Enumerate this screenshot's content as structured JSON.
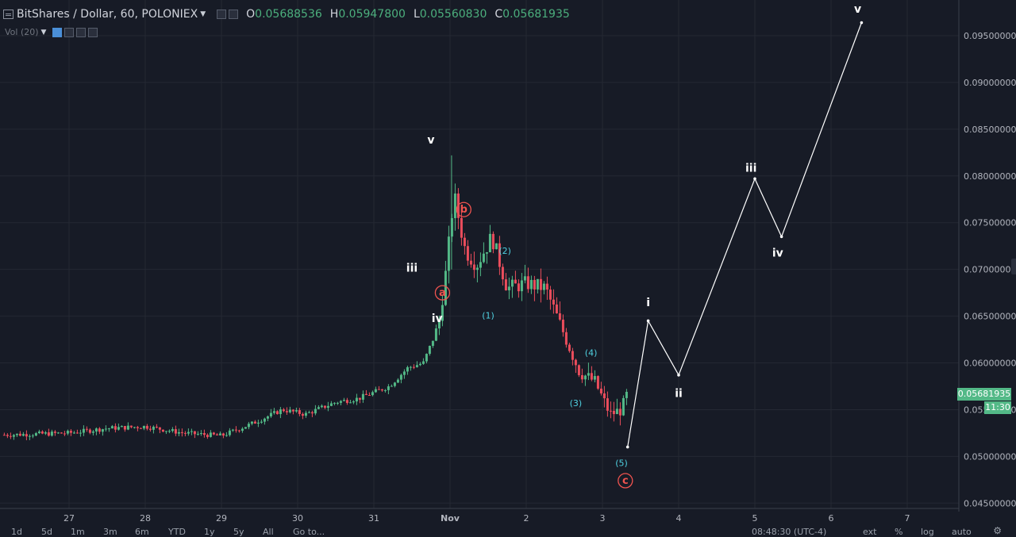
{
  "header": {
    "symbol": "BitShares / Dollar, 60, POLONIEX",
    "open_label": "O",
    "open": "0.05688536",
    "high_label": "H",
    "high": "0.05947800",
    "low_label": "L",
    "low": "0.05560830",
    "close_label": "C",
    "close": "0.05681935"
  },
  "indicator": {
    "label": "Vol (20)"
  },
  "price_axis": {
    "ticks": [
      "0.09500000",
      "0.09000000",
      "0.08500000",
      "0.08000000",
      "0.07500000",
      "0.07000000",
      "0.06500000",
      "0.06000000",
      "0.05500000",
      "0.05000000",
      "0.04500000"
    ],
    "tick_values": [
      0.095,
      0.09,
      0.085,
      0.08,
      0.075,
      0.07,
      0.065,
      0.06,
      0.055,
      0.05,
      0.045
    ],
    "last_price": "0.05681935",
    "countdown": "11:30"
  },
  "time_axis": {
    "labels": [
      "27",
      "28",
      "29",
      "30",
      "31",
      "Nov",
      "2",
      "3",
      "4",
      "5",
      "6",
      "7"
    ],
    "day_positions": [
      0,
      1,
      2,
      3,
      4,
      5,
      6,
      7,
      8,
      9,
      10,
      11
    ]
  },
  "bottom_bar": {
    "ranges": [
      "1d",
      "5d",
      "1m",
      "3m",
      "6m",
      "YTD",
      "1y",
      "5y",
      "All"
    ],
    "goto": "Go to...",
    "clock": "08:48:30 (UTC-4)",
    "ext": "ext",
    "percent": "%",
    "log": "log",
    "auto": "auto"
  },
  "colors": {
    "up": "#53b987",
    "down": "#eb4d5c",
    "wave_white": "#ffffff",
    "wave_cyan": "#4fd0e0",
    "wave_red": "#f0534f",
    "grid": "#242833",
    "background": "#171b26"
  },
  "chart_data": {
    "type": "candlestick",
    "candles_day_range": [
      -0.85,
      6.35
    ],
    "candle_anchors": [
      {
        "day": -0.85,
        "price": 0.0523
      },
      {
        "day": 0.0,
        "price": 0.0525
      },
      {
        "day": 0.5,
        "price": 0.053
      },
      {
        "day": 1.0,
        "price": 0.0532
      },
      {
        "day": 1.5,
        "price": 0.0525
      },
      {
        "day": 2.0,
        "price": 0.0522
      },
      {
        "day": 2.4,
        "price": 0.0535
      },
      {
        "day": 2.8,
        "price": 0.055
      },
      {
        "day": 3.1,
        "price": 0.0545
      },
      {
        "day": 3.5,
        "price": 0.0558
      },
      {
        "day": 3.8,
        "price": 0.0562
      },
      {
        "day": 4.2,
        "price": 0.0575
      },
      {
        "day": 4.45,
        "price": 0.0595
      },
      {
        "day": 4.65,
        "price": 0.06
      },
      {
        "day": 4.85,
        "price": 0.064
      },
      {
        "day": 4.95,
        "price": 0.07
      },
      {
        "day": 5.05,
        "price": 0.078
      },
      {
        "day": 5.2,
        "price": 0.072
      },
      {
        "day": 5.35,
        "price": 0.0705
      },
      {
        "day": 5.55,
        "price": 0.0735
      },
      {
        "day": 5.75,
        "price": 0.068
      },
      {
        "day": 6.0,
        "price": 0.0685
      },
      {
        "day": 6.25,
        "price": 0.068
      },
      {
        "day": 6.45,
        "price": 0.064
      },
      {
        "day": 6.7,
        "price": 0.059
      },
      {
        "day": 6.9,
        "price": 0.058
      },
      {
        "day": 7.1,
        "price": 0.0545
      },
      {
        "day": 7.25,
        "price": 0.055
      },
      {
        "day": 7.33,
        "price": 0.0568
      }
    ],
    "projection_path": [
      {
        "day": 7.33,
        "price": 0.051
      },
      {
        "day": 7.6,
        "price": 0.0645
      },
      {
        "day": 8.0,
        "price": 0.0587
      },
      {
        "day": 9.0,
        "price": 0.0797
      },
      {
        "day": 9.35,
        "price": 0.0735
      },
      {
        "day": 10.4,
        "price": 0.0964
      }
    ],
    "wave_labels": [
      {
        "text": "v",
        "day": 4.75,
        "price": 0.0838,
        "style": "white"
      },
      {
        "text": "iii",
        "day": 4.5,
        "price": 0.0701,
        "style": "white"
      },
      {
        "text": "iv",
        "day": 4.83,
        "price": 0.0647,
        "style": "white"
      },
      {
        "text": "a",
        "day": 4.9,
        "price": 0.0675,
        "style": "red-circle"
      },
      {
        "text": "b",
        "day": 5.18,
        "price": 0.0764,
        "style": "red-circle"
      },
      {
        "text": "c",
        "day": 7.3,
        "price": 0.0474,
        "style": "red-circle"
      },
      {
        "text": "(1)",
        "day": 5.5,
        "price": 0.0651,
        "style": "cyan"
      },
      {
        "text": "(2)",
        "day": 5.72,
        "price": 0.072,
        "style": "cyan"
      },
      {
        "text": "(3)",
        "day": 6.65,
        "price": 0.0557,
        "style": "cyan"
      },
      {
        "text": "(4)",
        "day": 6.85,
        "price": 0.0611,
        "style": "cyan"
      },
      {
        "text": "(5)",
        "day": 7.25,
        "price": 0.0493,
        "style": "cyan"
      },
      {
        "text": "i",
        "day": 7.6,
        "price": 0.0664,
        "style": "white"
      },
      {
        "text": "ii",
        "day": 8.0,
        "price": 0.0567,
        "style": "white"
      },
      {
        "text": "iii",
        "day": 8.95,
        "price": 0.0808,
        "style": "white"
      },
      {
        "text": "iv",
        "day": 9.3,
        "price": 0.0717,
        "style": "white"
      },
      {
        "text": "v",
        "day": 10.35,
        "price": 0.0978,
        "style": "white"
      }
    ]
  }
}
